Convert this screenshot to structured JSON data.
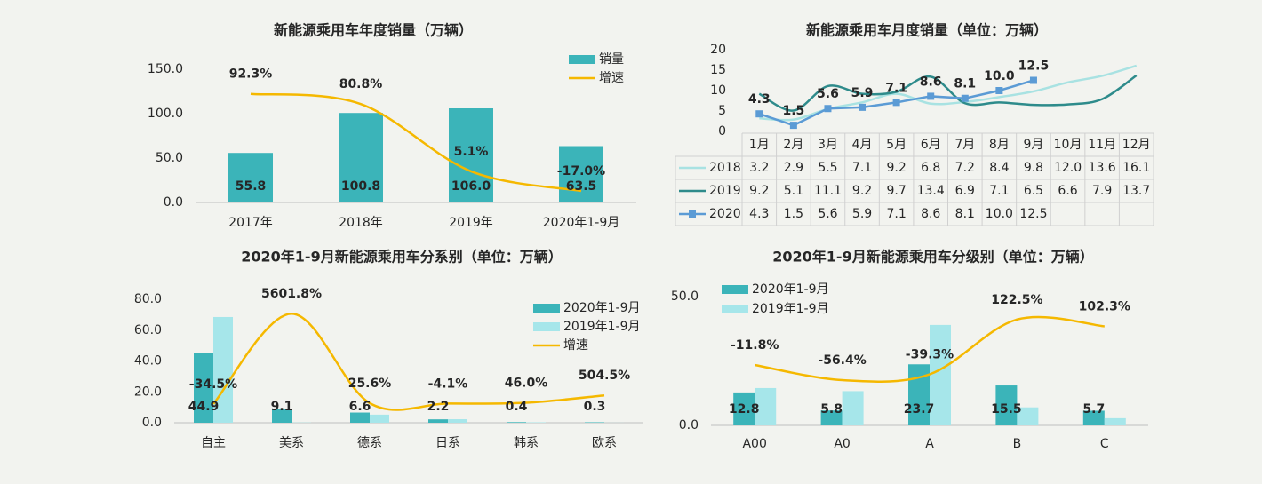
{
  "chart_data": [
    {
      "type": "bar",
      "title": "新能源乘用车年度销量（万辆）",
      "categories": [
        "2017年",
        "2018年",
        "2019年",
        "2020年1-9月"
      ],
      "series": [
        {
          "name": "销量",
          "color": "#3bb4b9",
          "values": [
            55.8,
            100.8,
            106.0,
            63.5
          ],
          "value_labels": [
            "55.8",
            "100.8",
            "106.0",
            "63.5"
          ]
        },
        {
          "name": "增速",
          "color": "#f5b800",
          "axis": "y2",
          "smooth": true,
          "data_labels": true,
          "values": [
            92.3,
            80.8,
            5.1,
            -17.0
          ],
          "value_labels": [
            "92.3%",
            "80.8%",
            "5.1%",
            "-17.0%"
          ]
        }
      ],
      "ylim": [
        0,
        150
      ],
      "yticks": [
        {
          "value": 0,
          "label": "0.0"
        },
        {
          "value": 50,
          "label": "50.0"
        },
        {
          "value": 100,
          "label": "100.0"
        },
        {
          "value": 150,
          "label": "150.0"
        }
      ],
      "y2lim": [
        -30,
        120
      ],
      "legend": "upper right"
    },
    {
      "type": "line",
      "title": "新能源乘用车月度销量（单位：万辆）",
      "categories": [
        "1月",
        "2月",
        "3月",
        "4月",
        "5月",
        "6月",
        "7月",
        "8月",
        "9月",
        "10月",
        "11月",
        "12月"
      ],
      "series": [
        {
          "name": "2018",
          "color": "#a8e2e2",
          "smooth": true,
          "values": [
            3.2,
            2.9,
            5.5,
            7.1,
            9.2,
            6.8,
            7.2,
            8.4,
            9.8,
            12.0,
            13.6,
            16.1
          ],
          "value_labels": [
            "3.2",
            "2.9",
            "5.5",
            "7.1",
            "9.2",
            "6.8",
            "7.2",
            "8.4",
            "9.8",
            "12.0",
            "13.6",
            "16.1"
          ]
        },
        {
          "name": "2019",
          "color": "#2e8b8b",
          "smooth": true,
          "values": [
            9.2,
            5.1,
            11.1,
            9.2,
            9.7,
            13.4,
            6.9,
            7.1,
            6.5,
            6.6,
            7.9,
            13.7
          ],
          "value_labels": [
            "9.2",
            "5.1",
            "11.1",
            "9.2",
            "9.7",
            "13.4",
            "6.9",
            "7.1",
            "6.5",
            "6.6",
            "7.9",
            "13.7"
          ]
        },
        {
          "name": "2020",
          "color": "#5b9bd5",
          "smooth": false,
          "marker": "square",
          "data_labels": true,
          "values": [
            4.3,
            1.5,
            5.6,
            5.9,
            7.1,
            8.6,
            8.1,
            10.0,
            12.5,
            null,
            null,
            null
          ],
          "value_labels": [
            "4.3",
            "1.5",
            "5.6",
            "5.9",
            "7.1",
            "8.6",
            "8.1",
            "10.0",
            "12.5",
            null,
            null,
            null
          ]
        }
      ],
      "ylim": [
        0,
        20
      ],
      "yticks": [
        0,
        5,
        10,
        15,
        20
      ],
      "table": true
    },
    {
      "type": "bar",
      "title": "2020年1-9月新能源乘用车分系别（单位：万辆）",
      "categories": [
        "自主",
        "美系",
        "德系",
        "日系",
        "韩系",
        "欧系"
      ],
      "series": [
        {
          "name": "2020年1-9月",
          "color": "#3bb4b9",
          "values": [
            44.9,
            9.1,
            6.6,
            2.2,
            0.4,
            0.3
          ],
          "value_labels": [
            "44.9",
            "9.1",
            "6.6",
            "2.2",
            "0.4",
            "0.3"
          ]
        },
        {
          "name": "2019年1-9月",
          "color": "#a6e6ea",
          "values": [
            68.5,
            0.16,
            5.25,
            2.29,
            0.27,
            0.05
          ]
        },
        {
          "name": "增速",
          "color": "#f5b800",
          "axis": "y2",
          "smooth": true,
          "data_labels": true,
          "values": [
            -34.5,
            5601.8,
            25.6,
            -4.1,
            46.0,
            504.5
          ],
          "value_labels": [
            "-34.5%",
            "5601.8%",
            "25.6%",
            "-4.1%",
            "46.0%",
            "504.5%"
          ]
        }
      ],
      "ylim": [
        0,
        80
      ],
      "yticks": [
        {
          "value": 0,
          "label": "0.0"
        },
        {
          "value": 20,
          "label": "20.0"
        },
        {
          "value": 40,
          "label": "40.0"
        },
        {
          "value": 60,
          "label": "60.0"
        },
        {
          "value": 80,
          "label": "80.0"
        }
      ],
      "y2lim": [
        -1200,
        6500
      ],
      "legend": "upper right"
    },
    {
      "type": "bar",
      "title": "2020年1-9月新能源乘用车分级别（单位：万辆）",
      "categories": [
        "A00",
        "A0",
        "A",
        "B",
        "C"
      ],
      "series": [
        {
          "name": "2020年1-9月",
          "color": "#3bb4b9",
          "values": [
            12.8,
            5.8,
            23.7,
            15.5,
            5.7
          ],
          "value_labels": [
            "12.8",
            "5.8",
            "23.7",
            "15.5",
            "5.7"
          ]
        },
        {
          "name": "2019年1-9月",
          "color": "#a6e6ea",
          "values": [
            14.5,
            13.3,
            39.0,
            7.0,
            2.8
          ]
        },
        {
          "color": "#f5b800",
          "axis": "y2",
          "smooth": true,
          "data_labels": true,
          "values": [
            -11.8,
            -56.4,
            -39.3,
            122.5,
            102.3
          ],
          "value_labels": [
            "-11.8%",
            "-56.4%",
            "-39.3%",
            "122.5%",
            "102.3%"
          ]
        }
      ],
      "ylim": [
        0,
        50
      ],
      "yticks": [
        {
          "value": 0,
          "label": "0.0"
        },
        {
          "value": 50,
          "label": "50.0"
        }
      ],
      "y2lim": [
        -190,
        190
      ],
      "legend": "upper left"
    }
  ]
}
